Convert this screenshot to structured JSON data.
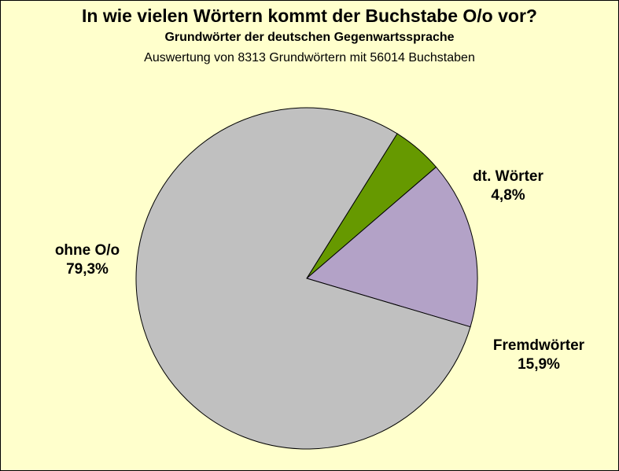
{
  "chart_data": {
    "type": "pie",
    "title": "In wie vielen Wörtern kommt der Buchstabe O/o vor?",
    "subtitle": "Grundwörter der deutschen Gegenwartssprache",
    "subtitle2": "Auswertung von 8313 Grundwörtern mit 56014 Buchstaben",
    "slices": [
      {
        "name": "dt. Wörter",
        "value": 4.8,
        "label": "4,8%",
        "color": "#669900"
      },
      {
        "name": "Fremdwörter",
        "value": 15.9,
        "label": "15,9%",
        "color": "#b3a2c7"
      },
      {
        "name": "ohne O/o",
        "value": 79.3,
        "label": "79,3%",
        "color": "#c0c0c0"
      }
    ],
    "start_angle_deg": -58
  }
}
